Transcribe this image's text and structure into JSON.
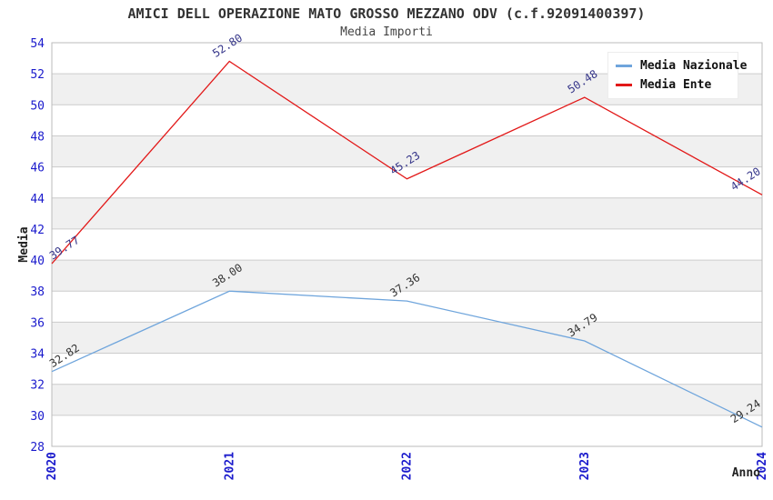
{
  "chart_data": {
    "type": "line",
    "title": "AMICI DELL OPERAZIONE MATO GROSSO MEZZANO ODV (c.f.92091400397)",
    "subtitle": "Media Importi",
    "categories": [
      "2020",
      "2021",
      "2022",
      "2023",
      "2024"
    ],
    "series": [
      {
        "name": "Media Nazionale",
        "values": [
          32.82,
          38.0,
          37.36,
          34.79,
          29.24
        ],
        "color": "#6FA5DC",
        "label_color": "#333333"
      },
      {
        "name": "Media Ente",
        "values": [
          39.77,
          52.8,
          45.23,
          50.48,
          44.2
        ],
        "color": "#E21818",
        "label_color": "#333388"
      }
    ],
    "xlabel": "Anno",
    "ylabel": "Media",
    "ylim": [
      28,
      54
    ],
    "ytick_step": 2,
    "grid": true,
    "legend_position": "top-right",
    "colors": {
      "axis_tick": "#1A1ACC",
      "grid_line": "#CCCCCC",
      "plot_border": "#BBBBBB",
      "band_light": "#FFFFFF",
      "band_dark": "#F0F0F0",
      "axis_title": "#222222"
    }
  }
}
